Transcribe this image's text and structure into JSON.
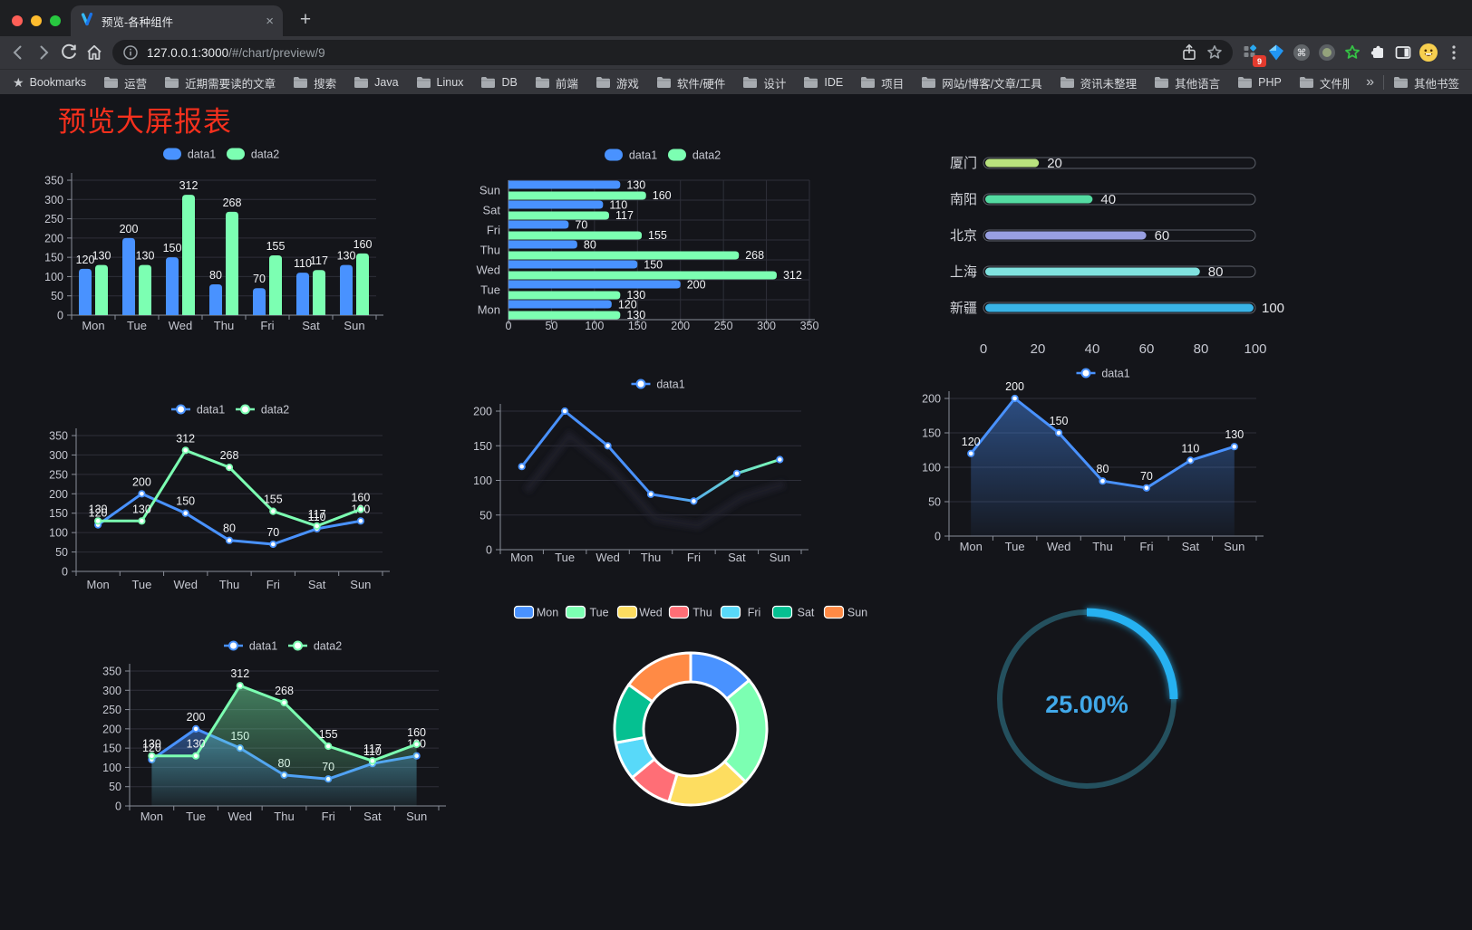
{
  "browser": {
    "tab_title": "预览-各种组件",
    "tab_close": "×",
    "new_tab": "+",
    "url_host": "127.0.0.1:3000",
    "url_path": "/#/chart/preview/9",
    "extension_badge": "9",
    "bookmarks_label": "Bookmarks",
    "bookmarks": [
      "运营",
      "近期需要读的文章",
      "搜索",
      "Java",
      "Linux",
      "DB",
      "前端",
      "游戏",
      "软件/硬件",
      "设计",
      "IDE",
      "项目",
      "网站/博客/文章/工具",
      "资讯未整理",
      "其他语言",
      "PHP",
      "文件服务器"
    ],
    "bookmarks_overflow": "»",
    "bookmarks_other": "其他书签"
  },
  "page": {
    "title": "预览大屏报表",
    "title_color": "#f5301d"
  },
  "chart_data": [
    {
      "id": "bar-grouped",
      "type": "bar",
      "categories": [
        "Mon",
        "Tue",
        "Wed",
        "Thu",
        "Fri",
        "Sat",
        "Sun"
      ],
      "series": [
        {
          "name": "data1",
          "color": "#4992ff",
          "values": [
            120,
            200,
            150,
            80,
            70,
            110,
            130
          ]
        },
        {
          "name": "data2",
          "color": "#7cffb2",
          "values": [
            130,
            130,
            312,
            268,
            155,
            117,
            160
          ]
        }
      ],
      "ylim": [
        0,
        350
      ],
      "yticks": [
        0,
        50,
        100,
        150,
        200,
        250,
        300,
        350
      ],
      "value_labels": true,
      "legend_position": "top"
    },
    {
      "id": "bar-horizontal",
      "type": "hbar",
      "categories": [
        "Sun",
        "Sat",
        "Fri",
        "Thu",
        "Wed",
        "Tue",
        "Mon"
      ],
      "series": [
        {
          "name": "data1",
          "color": "#4992ff",
          "values": [
            130,
            110,
            70,
            80,
            150,
            200,
            120
          ]
        },
        {
          "name": "data2",
          "color": "#7cffb2",
          "values": [
            160,
            117,
            155,
            268,
            312,
            130,
            130
          ]
        }
      ],
      "xlim": [
        0,
        350
      ],
      "xticks": [
        0,
        50,
        100,
        150,
        200,
        250,
        300,
        350
      ],
      "value_labels": true,
      "legend_position": "top"
    },
    {
      "id": "progress-bars",
      "type": "progress",
      "xlim": [
        0,
        100
      ],
      "xticks": [
        0,
        20,
        40,
        60,
        80,
        100
      ],
      "rows": [
        {
          "label": "厦门",
          "value": 20,
          "color": "#b9e27e"
        },
        {
          "label": "南阳",
          "value": 40,
          "color": "#54dba2"
        },
        {
          "label": "北京",
          "value": 60,
          "color": "#989fe2"
        },
        {
          "label": "上海",
          "value": 80,
          "color": "#80e2df"
        },
        {
          "label": "新疆",
          "value": 100,
          "color": "#39b3e6"
        }
      ]
    },
    {
      "id": "line-two-series",
      "type": "line",
      "categories": [
        "Mon",
        "Tue",
        "Wed",
        "Thu",
        "Fri",
        "Sat",
        "Sun"
      ],
      "series": [
        {
          "name": "data1",
          "color": "#4992ff",
          "values": [
            120,
            200,
            150,
            80,
            70,
            110,
            130
          ]
        },
        {
          "name": "data2",
          "color": "#7cffb2",
          "values": [
            130,
            130,
            312,
            268,
            155,
            117,
            160
          ]
        }
      ],
      "ylim": [
        0,
        350
      ],
      "yticks": [
        0,
        50,
        100,
        150,
        200,
        250,
        300,
        350
      ],
      "value_labels": true
    },
    {
      "id": "line-gradient",
      "type": "line",
      "categories": [
        "Mon",
        "Tue",
        "Wed",
        "Thu",
        "Fri",
        "Sat",
        "Sun"
      ],
      "series": [
        {
          "name": "data1",
          "color": "#4992ff",
          "color_end": "#7cffb2",
          "shadow": true,
          "values": [
            120,
            200,
            150,
            80,
            70,
            110,
            130
          ]
        }
      ],
      "ylim": [
        0,
        200
      ],
      "yticks": [
        0,
        50,
        100,
        150,
        200
      ],
      "value_labels": false
    },
    {
      "id": "line-area",
      "type": "line",
      "categories": [
        "Mon",
        "Tue",
        "Wed",
        "Thu",
        "Fri",
        "Sat",
        "Sun"
      ],
      "series": [
        {
          "name": "data1",
          "color": "#4992ff",
          "area": true,
          "values": [
            120,
            200,
            150,
            80,
            70,
            110,
            130
          ]
        }
      ],
      "ylim": [
        0,
        200
      ],
      "yticks": [
        0,
        50,
        100,
        150,
        200
      ],
      "value_labels": true
    },
    {
      "id": "area-two-series",
      "type": "line",
      "categories": [
        "Mon",
        "Tue",
        "Wed",
        "Thu",
        "Fri",
        "Sat",
        "Sun"
      ],
      "series": [
        {
          "name": "data1",
          "color": "#4992ff",
          "area": true,
          "values": [
            120,
            200,
            150,
            80,
            70,
            110,
            130
          ]
        },
        {
          "name": "data2",
          "color": "#7cffb2",
          "area": true,
          "values": [
            130,
            130,
            312,
            268,
            155,
            117,
            160
          ]
        }
      ],
      "ylim": [
        0,
        350
      ],
      "yticks": [
        0,
        50,
        100,
        150,
        200,
        250,
        300,
        350
      ],
      "value_labels": true
    },
    {
      "id": "donut",
      "type": "pie",
      "slices": [
        {
          "label": "Mon",
          "value": 120,
          "color": "#4992ff"
        },
        {
          "label": "Tue",
          "value": 200,
          "color": "#7cffb2"
        },
        {
          "label": "Wed",
          "value": 150,
          "color": "#fddd60"
        },
        {
          "label": "Thu",
          "value": 80,
          "color": "#ff6e76"
        },
        {
          "label": "Fri",
          "value": 70,
          "color": "#58d9f9"
        },
        {
          "label": "Sat",
          "value": 110,
          "color": "#05c091"
        },
        {
          "label": "Sun",
          "value": 130,
          "color": "#ff8a45"
        }
      ],
      "legend_position": "top"
    },
    {
      "id": "gauge",
      "type": "gauge",
      "value": 25,
      "display": "25.00%",
      "color": "#27b1f1",
      "track_color": "#24505e",
      "text_color": "#41a9ea"
    }
  ]
}
